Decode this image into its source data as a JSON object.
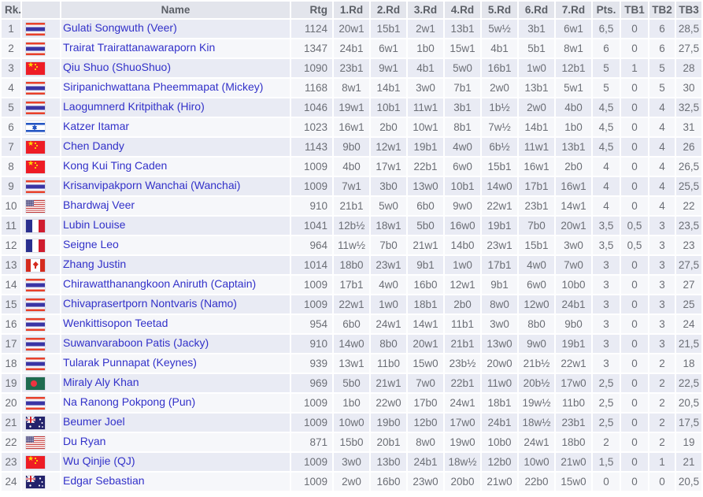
{
  "colors": {
    "header_bg": "#e3e5ec",
    "header_text": "#5c6067",
    "row_odd_bg": "#e9ebf4",
    "row_even_bg": "#f6f7fa",
    "link_blue": "#3231c9",
    "muted_number_text": "#6b6e75"
  },
  "table": {
    "columns": [
      "Rk.",
      "",
      "Name",
      "Rtg",
      "1.Rd",
      "2.Rd",
      "3.Rd",
      "4.Rd",
      "5.Rd",
      "6.Rd",
      "7.Rd",
      "Pts.",
      "TB1",
      "TB2",
      "TB3"
    ],
    "rows": [
      {
        "rk": "1",
        "country": "tha",
        "name": "Gulati Songwuth (Veer)",
        "rtg": "1124",
        "rounds": [
          "20w1",
          "15b1",
          "2w1",
          "13b1",
          "5w½",
          "3b1",
          "6w1"
        ],
        "pts": "6,5",
        "tb1": "0",
        "tb2": "6",
        "tb3": "28,5"
      },
      {
        "rk": "2",
        "country": "tha",
        "name": "Trairat Trairattanawaraporn Kin",
        "rtg": "1347",
        "rounds": [
          "24b1",
          "6w1",
          "1b0",
          "15w1",
          "4b1",
          "5b1",
          "8w1"
        ],
        "pts": "6",
        "tb1": "0",
        "tb2": "6",
        "tb3": "27,5"
      },
      {
        "rk": "3",
        "country": "chn",
        "name": "Qiu Shuo (ShuoShuo)",
        "rtg": "1090",
        "rounds": [
          "23b1",
          "9w1",
          "4b1",
          "5w0",
          "16b1",
          "1w0",
          "12b1"
        ],
        "pts": "5",
        "tb1": "1",
        "tb2": "5",
        "tb3": "28"
      },
      {
        "rk": "4",
        "country": "tha",
        "name": "Siripanichwattana Pheemmapat (Mickey)",
        "rtg": "1168",
        "rounds": [
          "8w1",
          "14b1",
          "3w0",
          "7b1",
          "2w0",
          "13b1",
          "5w1"
        ],
        "pts": "5",
        "tb1": "0",
        "tb2": "5",
        "tb3": "30"
      },
      {
        "rk": "5",
        "country": "tha",
        "name": "Laogumnerd Kritpithak (Hiro)",
        "rtg": "1046",
        "rounds": [
          "19w1",
          "10b1",
          "11w1",
          "3b1",
          "1b½",
          "2w0",
          "4b0"
        ],
        "pts": "4,5",
        "tb1": "0",
        "tb2": "4",
        "tb3": "32,5"
      },
      {
        "rk": "6",
        "country": "isr",
        "name": "Katzer Itamar",
        "rtg": "1023",
        "rounds": [
          "16w1",
          "2b0",
          "10w1",
          "8b1",
          "7w½",
          "14b1",
          "1b0"
        ],
        "pts": "4,5",
        "tb1": "0",
        "tb2": "4",
        "tb3": "31"
      },
      {
        "rk": "7",
        "country": "chn",
        "name": "Chen Dandy",
        "rtg": "1143",
        "rounds": [
          "9b0",
          "12w1",
          "19b1",
          "4w0",
          "6b½",
          "11w1",
          "13b1"
        ],
        "pts": "4,5",
        "tb1": "0",
        "tb2": "4",
        "tb3": "26"
      },
      {
        "rk": "8",
        "country": "chn",
        "name": "Kong Kui Ting Caden",
        "rtg": "1009",
        "rounds": [
          "4b0",
          "17w1",
          "22b1",
          "6w0",
          "15b1",
          "16w1",
          "2b0"
        ],
        "pts": "4",
        "tb1": "0",
        "tb2": "4",
        "tb3": "26,5"
      },
      {
        "rk": "9",
        "country": "tha",
        "name": "Krisanvipakporn Wanchai (Wanchai)",
        "rtg": "1009",
        "rounds": [
          "7w1",
          "3b0",
          "13w0",
          "10b1",
          "14w0",
          "17b1",
          "16w1"
        ],
        "pts": "4",
        "tb1": "0",
        "tb2": "4",
        "tb3": "25,5"
      },
      {
        "rk": "10",
        "country": "usa",
        "name": "Bhardwaj Veer",
        "rtg": "910",
        "rounds": [
          "21b1",
          "5w0",
          "6b0",
          "9w0",
          "22w1",
          "23b1",
          "14w1"
        ],
        "pts": "4",
        "tb1": "0",
        "tb2": "4",
        "tb3": "22"
      },
      {
        "rk": "11",
        "country": "fra",
        "name": "Lubin Louise",
        "rtg": "1041",
        "rounds": [
          "12b½",
          "18w1",
          "5b0",
          "16w0",
          "19b1",
          "7b0",
          "20w1"
        ],
        "pts": "3,5",
        "tb1": "0,5",
        "tb2": "3",
        "tb3": "23,5"
      },
      {
        "rk": "12",
        "country": "fra",
        "name": "Seigne Leo",
        "rtg": "964",
        "rounds": [
          "11w½",
          "7b0",
          "21w1",
          "14b0",
          "23w1",
          "15b1",
          "3w0"
        ],
        "pts": "3,5",
        "tb1": "0,5",
        "tb2": "3",
        "tb3": "23"
      },
      {
        "rk": "13",
        "country": "can",
        "name": "Zhang Justin",
        "rtg": "1014",
        "rounds": [
          "18b0",
          "23w1",
          "9b1",
          "1w0",
          "17b1",
          "4w0",
          "7w0"
        ],
        "pts": "3",
        "tb1": "0",
        "tb2": "3",
        "tb3": "27,5"
      },
      {
        "rk": "14",
        "country": "tha",
        "name": "Chirawatthanangkoon Aniruth (Captain)",
        "rtg": "1009",
        "rounds": [
          "17b1",
          "4w0",
          "16b0",
          "12w1",
          "9b1",
          "6w0",
          "10b0"
        ],
        "pts": "3",
        "tb1": "0",
        "tb2": "3",
        "tb3": "27"
      },
      {
        "rk": "15",
        "country": "tha",
        "name": "Chivaprasertporn Nontvaris (Namo)",
        "rtg": "1009",
        "rounds": [
          "22w1",
          "1w0",
          "18b1",
          "2b0",
          "8w0",
          "12w0",
          "24b1"
        ],
        "pts": "3",
        "tb1": "0",
        "tb2": "3",
        "tb3": "25"
      },
      {
        "rk": "16",
        "country": "tha",
        "name": "Wenkittisopon Teetad",
        "rtg": "954",
        "rounds": [
          "6b0",
          "24w1",
          "14w1",
          "11b1",
          "3w0",
          "8b0",
          "9b0"
        ],
        "pts": "3",
        "tb1": "0",
        "tb2": "3",
        "tb3": "24"
      },
      {
        "rk": "17",
        "country": "tha",
        "name": "Suwanvaraboon Patis (Jacky)",
        "rtg": "910",
        "rounds": [
          "14w0",
          "8b0",
          "20w1",
          "21b1",
          "13w0",
          "9w0",
          "19b1"
        ],
        "pts": "3",
        "tb1": "0",
        "tb2": "3",
        "tb3": "21,5"
      },
      {
        "rk": "18",
        "country": "tha",
        "name": "Tularak Punnapat (Keynes)",
        "rtg": "939",
        "rounds": [
          "13w1",
          "11b0",
          "15w0",
          "23b½",
          "20w0",
          "21b½",
          "22w1"
        ],
        "pts": "3",
        "tb1": "0",
        "tb2": "2",
        "tb3": "18"
      },
      {
        "rk": "19",
        "country": "ban",
        "name": "Miraly Aly Khan",
        "rtg": "969",
        "rounds": [
          "5b0",
          "21w1",
          "7w0",
          "22b1",
          "11w0",
          "20b½",
          "17w0"
        ],
        "pts": "2,5",
        "tb1": "0",
        "tb2": "2",
        "tb3": "22,5"
      },
      {
        "rk": "20",
        "country": "tha",
        "name": "Na Ranong Pokpong (Pun)",
        "rtg": "1009",
        "rounds": [
          "1b0",
          "22w0",
          "17b0",
          "24w1",
          "18b1",
          "19w½",
          "11b0"
        ],
        "pts": "2,5",
        "tb1": "0",
        "tb2": "2",
        "tb3": "20,5"
      },
      {
        "rk": "21",
        "country": "aus",
        "name": "Beumer Joel",
        "rtg": "1009",
        "rounds": [
          "10w0",
          "19b0",
          "12b0",
          "17w0",
          "24b1",
          "18w½",
          "23b1"
        ],
        "pts": "2,5",
        "tb1": "0",
        "tb2": "2",
        "tb3": "17,5"
      },
      {
        "rk": "22",
        "country": "usa",
        "name": "Du Ryan",
        "rtg": "871",
        "rounds": [
          "15b0",
          "20b1",
          "8w0",
          "19w0",
          "10b0",
          "24w1",
          "18b0"
        ],
        "pts": "2",
        "tb1": "0",
        "tb2": "2",
        "tb3": "19"
      },
      {
        "rk": "23",
        "country": "chn",
        "name": "Wu Qinjie (QJ)",
        "rtg": "1009",
        "rounds": [
          "3w0",
          "13b0",
          "24b1",
          "18w½",
          "12b0",
          "10w0",
          "21w0"
        ],
        "pts": "1,5",
        "tb1": "0",
        "tb2": "1",
        "tb3": "21"
      },
      {
        "rk": "24",
        "country": "aus",
        "name": "Edgar Sebastian",
        "rtg": "1009",
        "rounds": [
          "2w0",
          "16b0",
          "23w0",
          "20b0",
          "21w0",
          "22b0",
          "15w0"
        ],
        "pts": "0",
        "tb1": "0",
        "tb2": "0",
        "tb3": "20,5"
      }
    ]
  }
}
